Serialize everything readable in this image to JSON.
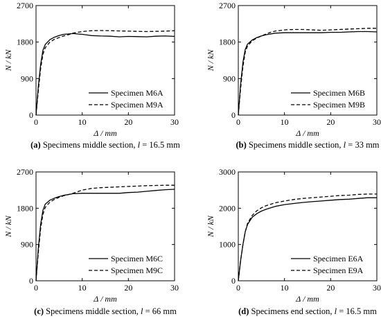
{
  "chart_data": [
    {
      "type": "line",
      "caption": {
        "letter": "(a)",
        "text": "Specimens middle section, ",
        "var": "l",
        "value": " = 16.5 mm"
      },
      "xlabel": "Δ / mm",
      "ylabel": "N / kN",
      "xlim": [
        0,
        30
      ],
      "ylim": [
        0,
        2700
      ],
      "xticks": [
        0,
        10,
        20,
        30
      ],
      "yticks": [
        0,
        900,
        1800,
        2700
      ],
      "legend_position": "bottom-right",
      "series": [
        {
          "name": "Specimen M6A",
          "style": "solid",
          "x": [
            0,
            0.5,
            1,
            1.5,
            2,
            3,
            4,
            5,
            6,
            7,
            8,
            9,
            10,
            12,
            14,
            16,
            18,
            20,
            22,
            24,
            26,
            28,
            30
          ],
          "y": [
            0,
            700,
            1250,
            1600,
            1740,
            1860,
            1920,
            1960,
            1990,
            2000,
            2010,
            2000,
            1990,
            1960,
            1950,
            1945,
            1930,
            1940,
            1935,
            1930,
            1945,
            1950,
            1940
          ]
        },
        {
          "name": "Specimen M9A",
          "style": "dashed",
          "x": [
            0,
            0.5,
            1,
            1.5,
            2,
            3,
            4,
            5,
            6,
            7,
            8,
            9,
            10,
            12,
            14,
            16,
            18,
            20,
            22,
            24,
            26,
            28,
            30
          ],
          "y": [
            0,
            600,
            1150,
            1500,
            1660,
            1800,
            1870,
            1910,
            1950,
            1980,
            2020,
            2040,
            2060,
            2080,
            2085,
            2080,
            2075,
            2070,
            2065,
            2060,
            2065,
            2070,
            2080
          ]
        }
      ]
    },
    {
      "type": "line",
      "caption": {
        "letter": "(b)",
        "text": "Specimens middle section, ",
        "var": "l",
        "value": " = 33 mm"
      },
      "xlabel": "Δ / mm",
      "ylabel": "N / kN",
      "xlim": [
        0,
        30
      ],
      "ylim": [
        0,
        2700
      ],
      "xticks": [
        0,
        10,
        20,
        30
      ],
      "yticks": [
        0,
        900,
        1800,
        2700
      ],
      "legend_position": "bottom-right",
      "series": [
        {
          "name": "Specimen M6B",
          "style": "solid",
          "x": [
            0,
            0.5,
            1,
            1.5,
            2,
            3,
            4,
            5,
            6,
            7,
            8,
            10,
            12,
            14,
            16,
            18,
            20,
            22,
            24,
            26,
            28,
            30
          ],
          "y": [
            0,
            750,
            1300,
            1620,
            1750,
            1850,
            1910,
            1950,
            1980,
            2000,
            2020,
            2030,
            2030,
            2030,
            2030,
            2030,
            2040,
            2040,
            2050,
            2060,
            2060,
            2050
          ]
        },
        {
          "name": "Specimen M9B",
          "style": "dashed",
          "x": [
            0,
            0.5,
            1,
            1.5,
            2,
            3,
            4,
            5,
            6,
            7,
            8,
            10,
            12,
            14,
            16,
            18,
            20,
            22,
            24,
            26,
            28,
            30
          ],
          "y": [
            0,
            650,
            1200,
            1550,
            1700,
            1830,
            1900,
            1950,
            2000,
            2040,
            2070,
            2100,
            2110,
            2110,
            2100,
            2090,
            2100,
            2110,
            2120,
            2130,
            2140,
            2140
          ]
        }
      ]
    },
    {
      "type": "line",
      "caption": {
        "letter": "(c)",
        "text": "Specimens middle section, ",
        "var": "l",
        "value": " = 66 mm"
      },
      "xlabel": "Δ / mm",
      "ylabel": "N / kN",
      "xlim": [
        0,
        30
      ],
      "ylim": [
        0,
        2700
      ],
      "xticks": [
        0,
        10,
        20,
        30
      ],
      "yticks": [
        0,
        900,
        1800,
        2700
      ],
      "legend_position": "bottom-right",
      "series": [
        {
          "name": "Specimen M6C",
          "style": "solid",
          "x": [
            0,
            0.5,
            1,
            1.5,
            2,
            3,
            4,
            5,
            6,
            7,
            8,
            10,
            12,
            14,
            16,
            18,
            20,
            22,
            24,
            26,
            28,
            30
          ],
          "y": [
            0,
            800,
            1400,
            1750,
            1900,
            2000,
            2050,
            2090,
            2120,
            2140,
            2160,
            2170,
            2170,
            2170,
            2170,
            2170,
            2190,
            2200,
            2220,
            2240,
            2260,
            2270
          ]
        },
        {
          "name": "Specimen M9C",
          "style": "dashed",
          "x": [
            0,
            0.5,
            1,
            1.5,
            2,
            3,
            4,
            5,
            6,
            7,
            8,
            10,
            12,
            14,
            16,
            18,
            20,
            22,
            24,
            26,
            28,
            30
          ],
          "y": [
            0,
            700,
            1300,
            1650,
            1820,
            1950,
            2020,
            2070,
            2110,
            2140,
            2170,
            2250,
            2290,
            2310,
            2320,
            2330,
            2340,
            2350,
            2360,
            2365,
            2370,
            2370
          ]
        }
      ]
    },
    {
      "type": "line",
      "caption": {
        "letter": "(d)",
        "text": "Specimens end section, ",
        "var": "l",
        "value": " = 16.5 mm"
      },
      "xlabel": "Δ / mm",
      "ylabel": "N / kN",
      "xlim": [
        0,
        30
      ],
      "ylim": [
        0,
        3000
      ],
      "xticks": [
        0,
        10,
        20,
        30
      ],
      "yticks": [
        0,
        1000,
        2000,
        3000
      ],
      "legend_position": "bottom-right",
      "series": [
        {
          "name": "Specimen E6A",
          "style": "solid",
          "x": [
            0,
            0.5,
            1,
            1.5,
            2,
            3,
            4,
            5,
            6,
            7,
            8,
            10,
            12,
            14,
            16,
            18,
            20,
            22,
            24,
            26,
            28,
            30
          ],
          "y": [
            0,
            550,
            1000,
            1350,
            1550,
            1750,
            1850,
            1920,
            1970,
            2010,
            2050,
            2100,
            2130,
            2160,
            2180,
            2200,
            2220,
            2240,
            2250,
            2270,
            2290,
            2290
          ]
        },
        {
          "name": "Specimen E9A",
          "style": "dashed",
          "x": [
            0,
            0.5,
            1,
            1.5,
            2,
            3,
            4,
            5,
            6,
            7,
            8,
            10,
            12,
            14,
            16,
            18,
            20,
            22,
            24,
            26,
            28,
            30
          ],
          "y": [
            0,
            550,
            1000,
            1350,
            1580,
            1800,
            1930,
            2010,
            2070,
            2110,
            2150,
            2200,
            2240,
            2270,
            2290,
            2310,
            2330,
            2350,
            2360,
            2380,
            2390,
            2390
          ]
        }
      ]
    }
  ]
}
